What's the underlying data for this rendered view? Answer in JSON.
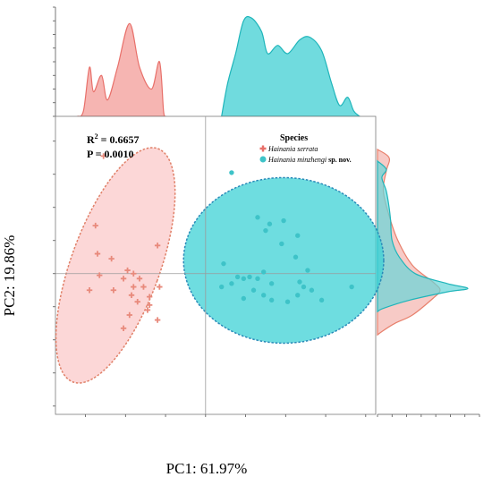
{
  "chart_data": {
    "type": "scatter",
    "xlabel": "PC1: 61.97%",
    "ylabel": "PC2: 19.86%",
    "xlim": [
      -0.0075,
      0.0085
    ],
    "ylim": [
      -0.0085,
      0.0095
    ],
    "x_ticks": [
      "-0.006",
      "-0.004",
      "-0.002",
      "0",
      "0.002",
      "0.004",
      "0.006",
      "0.008"
    ],
    "y_ticks": [
      "0.008",
      "0.006",
      "0.004",
      "0.002",
      "0",
      "-0.002",
      "-0.004",
      "-0.006",
      "-0.008"
    ],
    "top_density_ticks": [
      "0",
      "0.5",
      "1",
      "1.5",
      "2",
      "2.5",
      "3",
      "3.5",
      "4"
    ],
    "right_density_ticks": [
      "0",
      "1",
      "2",
      "3",
      "4",
      "5",
      "6",
      "7"
    ],
    "annotations": {
      "r2_label": "R",
      "r2_sup": "2",
      "r2_value": " = 0.6657",
      "p": "P = 0.0010"
    },
    "legend": {
      "title": "Species",
      "placement": "top-right",
      "entries": [
        {
          "name_italic": "Hainania serrata",
          "suffix": ""
        },
        {
          "name_italic": "Hainania minzhengi",
          "suffix": " sp. nov."
        }
      ]
    },
    "series": [
      {
        "marker": "plus",
        "color": "#e88a7c",
        "points": [
          [
            -0.0051,
            0.0071
          ],
          [
            -0.0055,
            0.0029
          ],
          [
            -0.0054,
            0.0012
          ],
          [
            -0.0047,
            0.0009
          ],
          [
            -0.0039,
            0.0002
          ],
          [
            -0.0036,
            0.0
          ],
          [
            -0.0053,
            -0.0001
          ],
          [
            -0.0041,
            -0.0003
          ],
          [
            -0.0033,
            -0.0003
          ],
          [
            -0.0036,
            -0.0008
          ],
          [
            -0.0031,
            -0.0008
          ],
          [
            -0.0023,
            -0.0008
          ],
          [
            -0.0058,
            -0.001
          ],
          [
            -0.0046,
            -0.001
          ],
          [
            -0.0037,
            -0.0013
          ],
          [
            -0.0028,
            -0.0014
          ],
          [
            -0.0034,
            -0.0017
          ],
          [
            -0.0028,
            -0.0019
          ],
          [
            -0.0029,
            -0.0022
          ],
          [
            -0.0038,
            -0.0025
          ],
          [
            -0.0024,
            -0.0028
          ],
          [
            -0.0041,
            -0.0033
          ],
          [
            -0.0024,
            0.0017
          ]
        ]
      },
      {
        "marker": "circle",
        "color": "#3ec3c8",
        "points": [
          [
            0.0013,
            0.0061
          ],
          [
            0.0026,
            0.0034
          ],
          [
            0.0032,
            0.003
          ],
          [
            0.003,
            0.0026
          ],
          [
            0.0039,
            0.0032
          ],
          [
            0.0046,
            0.0023
          ],
          [
            0.0038,
            0.0018
          ],
          [
            0.0045,
            0.001
          ],
          [
            0.0009,
            0.0006
          ],
          [
            0.0029,
            0.0001
          ],
          [
            0.0051,
            0.0002
          ],
          [
            0.0016,
            -0.0002
          ],
          [
            0.0022,
            -0.0002
          ],
          [
            0.0019,
            -0.0003
          ],
          [
            0.0026,
            -0.0003
          ],
          [
            0.0047,
            -0.0005
          ],
          [
            0.0013,
            -0.0006
          ],
          [
            0.0033,
            -0.0006
          ],
          [
            0.0049,
            -0.0008
          ],
          [
            0.0008,
            -0.0008
          ],
          [
            0.0024,
            -0.001
          ],
          [
            0.0073,
            -0.0008
          ],
          [
            0.0053,
            -0.001
          ],
          [
            0.0046,
            -0.0013
          ],
          [
            0.0029,
            -0.0013
          ],
          [
            0.0019,
            -0.0015
          ],
          [
            0.0058,
            -0.0016
          ],
          [
            0.0033,
            -0.0016
          ],
          [
            0.0041,
            -0.0017
          ]
        ]
      }
    ],
    "ellipses": [
      {
        "color": "#fbc9c9",
        "stroke": "#e08068",
        "center": [
          -0.0045,
          0.0005
        ],
        "rx": 0.00222,
        "ry": 0.0075,
        "angle": 20
      },
      {
        "color": "#3ed2d6",
        "stroke": "#2a8ab8",
        "center": [
          0.0039,
          0.0008
        ],
        "rx": 0.005,
        "ry": 0.005,
        "angle": 0
      }
    ],
    "top_density": [
      {
        "color": "#f4a8a4",
        "stroke": "#e8706a",
        "points": [
          [
            -0.0064,
            0
          ],
          [
            -0.0061,
            0.2
          ],
          [
            -0.0058,
            1.8
          ],
          [
            -0.0056,
            0.9
          ],
          [
            -0.0052,
            1.5
          ],
          [
            -0.0049,
            0.6
          ],
          [
            -0.0044,
            1.8
          ],
          [
            -0.0038,
            3.4
          ],
          [
            -0.0033,
            1.8
          ],
          [
            -0.0027,
            1.0
          ],
          [
            -0.0023,
            2.0
          ],
          [
            -0.0021,
            0.2
          ],
          [
            -0.002,
            0
          ]
        ]
      },
      {
        "color": "#57d5d8",
        "stroke": "#1fb5ba",
        "points": [
          [
            0.0008,
            0
          ],
          [
            0.0011,
            1.2
          ],
          [
            0.0015,
            2.3
          ],
          [
            0.0019,
            3.5
          ],
          [
            0.0023,
            3.6
          ],
          [
            0.0028,
            3.1
          ],
          [
            0.0031,
            2.3
          ],
          [
            0.0036,
            2.6
          ],
          [
            0.0041,
            2.3
          ],
          [
            0.0047,
            2.8
          ],
          [
            0.0052,
            2.9
          ],
          [
            0.0058,
            2.4
          ],
          [
            0.0063,
            1.2
          ],
          [
            0.0067,
            0.4
          ],
          [
            0.0071,
            0.7
          ],
          [
            0.0074,
            0.2
          ],
          [
            0.0077,
            0
          ]
        ]
      }
    ],
    "right_density": [
      {
        "color": "#f4b4ae",
        "stroke": "#e8806c",
        "points": [
          [
            0.0075,
            0
          ],
          [
            0.007,
            0.8
          ],
          [
            0.0062,
            0.6
          ],
          [
            0.005,
            0.4
          ],
          [
            0.0035,
            0.8
          ],
          [
            0.002,
            1.4
          ],
          [
            0.0005,
            2.4
          ],
          [
            -0.0005,
            3.8
          ],
          [
            -0.001,
            4.3
          ],
          [
            -0.0015,
            3.8
          ],
          [
            -0.0025,
            2.4
          ],
          [
            -0.003,
            1.2
          ],
          [
            -0.0035,
            0.3
          ],
          [
            -0.0037,
            0
          ]
        ]
      },
      {
        "color": "#66d6d9",
        "stroke": "#1fb5ba",
        "points": [
          [
            0.0068,
            0
          ],
          [
            0.0063,
            0.6
          ],
          [
            0.0058,
            0.3
          ],
          [
            0.005,
            0.6
          ],
          [
            0.004,
            0.8
          ],
          [
            0.0032,
            0.9
          ],
          [
            0.002,
            1.0
          ],
          [
            0.001,
            1.5
          ],
          [
            0.0,
            2.6
          ],
          [
            -0.0006,
            4.8
          ],
          [
            -0.0009,
            6.2
          ],
          [
            -0.0011,
            4.8
          ],
          [
            -0.0016,
            2.2
          ],
          [
            -0.0021,
            0.4
          ],
          [
            -0.0023,
            0
          ]
        ]
      }
    ]
  }
}
